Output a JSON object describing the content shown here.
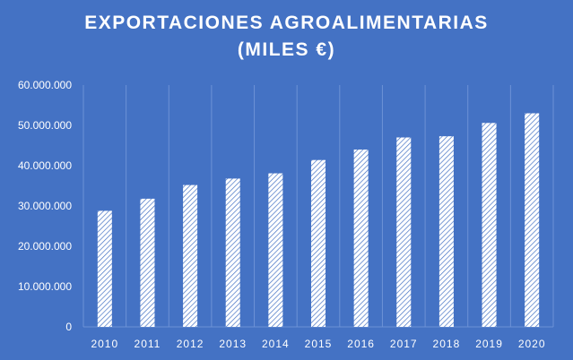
{
  "chart_data": {
    "type": "bar",
    "title": "EXPORTACIONES  AGROALIMENTARIAS",
    "subtitle": "(MILES €)",
    "xlabel": "",
    "ylabel": "",
    "categories": [
      "2010",
      "2011",
      "2012",
      "2013",
      "2014",
      "2015",
      "2016",
      "2017",
      "2018",
      "2019",
      "2020"
    ],
    "values": [
      28800000,
      31800000,
      35200000,
      36800000,
      38100000,
      41400000,
      44000000,
      47000000,
      47300000,
      50600000,
      53000000
    ],
    "ylim": [
      0,
      60000000
    ],
    "yticks": [
      "0",
      "10.000.000",
      "20.000.000",
      "30.000.000",
      "40.000.000",
      "50.000.000",
      "60.000.000"
    ],
    "grid": "vertical",
    "legend": "none",
    "colors": {
      "background": "#4472c4",
      "bar_fill": "#ffffff",
      "bar_hatch": "#4472c4",
      "text": "#ffffff",
      "gridline": "#6d92d6"
    }
  }
}
